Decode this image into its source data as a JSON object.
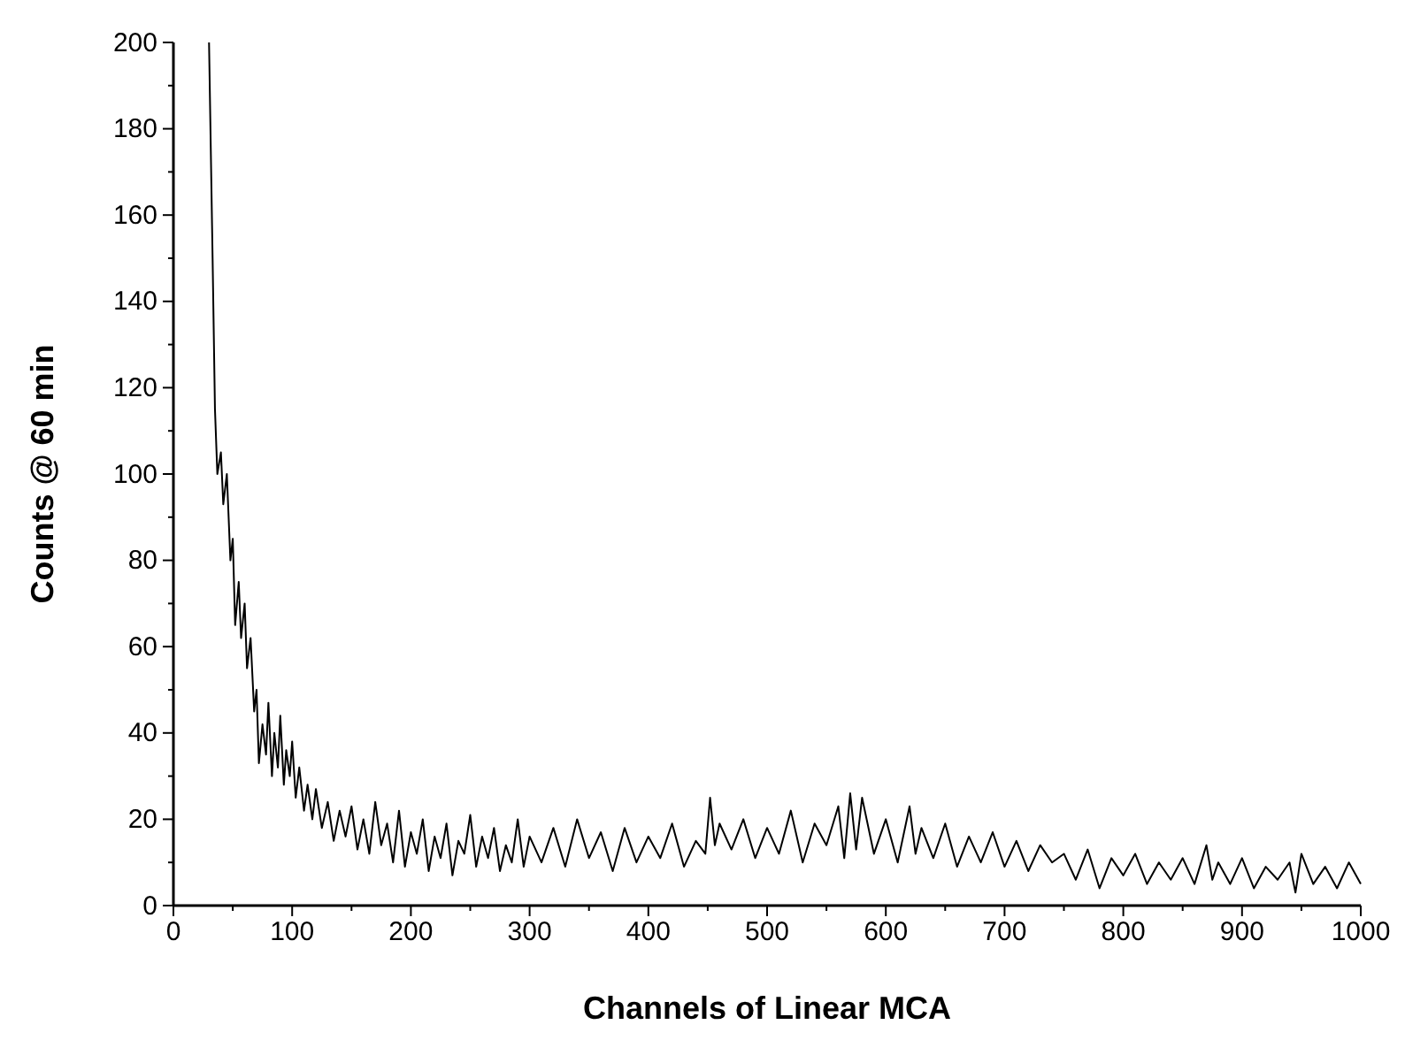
{
  "chart_data": {
    "type": "line",
    "xlabel": "Channels of Linear MCA",
    "ylabel": "Counts @ 60 min",
    "xlim": [
      0,
      1000
    ],
    "ylim": [
      0,
      200
    ],
    "xticks": [
      0,
      {
        "value": 50,
        "label": null
      },
      100,
      {
        "value": 150,
        "label": null
      },
      200,
      {
        "value": 250,
        "label": null
      },
      300,
      {
        "value": 350,
        "label": null
      },
      400,
      {
        "value": 450,
        "label": null
      },
      500,
      {
        "value": 550,
        "label": null
      },
      600,
      {
        "value": 650,
        "label": null
      },
      700,
      {
        "value": 750,
        "label": null
      },
      800,
      {
        "value": 850,
        "label": null
      },
      900,
      {
        "value": 950,
        "label": null
      },
      1000
    ],
    "yticks": [
      0,
      {
        "value": 10,
        "label": null
      },
      20,
      {
        "value": 30,
        "label": null
      },
      40,
      {
        "value": 50,
        "label": null
      },
      60,
      {
        "value": 70,
        "label": null
      },
      80,
      {
        "value": 90,
        "label": null
      },
      100,
      {
        "value": 110,
        "label": null
      },
      120,
      {
        "value": 130,
        "label": null
      },
      140,
      {
        "value": 150,
        "label": null
      },
      160,
      {
        "value": 170,
        "label": null
      },
      180,
      {
        "value": 190,
        "label": null
      },
      200
    ],
    "grid": false,
    "marker": "none",
    "line_style": "solid",
    "series": [
      {
        "color": "#000000",
        "x": [
          30,
          33,
          35,
          37,
          40,
          42,
          45,
          48,
          50,
          52,
          55,
          57,
          60,
          62,
          65,
          68,
          70,
          72,
          75,
          78,
          80,
          83,
          85,
          88,
          90,
          93,
          95,
          98,
          100,
          103,
          106,
          110,
          113,
          117,
          120,
          125,
          130,
          135,
          140,
          145,
          150,
          155,
          160,
          165,
          170,
          175,
          180,
          185,
          190,
          195,
          200,
          205,
          210,
          215,
          220,
          225,
          230,
          235,
          240,
          245,
          250,
          255,
          260,
          265,
          270,
          275,
          280,
          285,
          290,
          295,
          300,
          310,
          320,
          330,
          340,
          350,
          360,
          370,
          380,
          390,
          400,
          410,
          420,
          430,
          440,
          448,
          452,
          456,
          460,
          470,
          480,
          490,
          500,
          510,
          520,
          530,
          540,
          550,
          560,
          565,
          570,
          575,
          580,
          590,
          600,
          610,
          620,
          625,
          630,
          640,
          650,
          660,
          670,
          680,
          690,
          700,
          710,
          720,
          730,
          740,
          750,
          760,
          770,
          780,
          790,
          800,
          810,
          820,
          830,
          840,
          850,
          860,
          870,
          875,
          880,
          890,
          900,
          910,
          920,
          930,
          940,
          945,
          950,
          960,
          970,
          980,
          990,
          1000
        ],
        "values": [
          200,
          150,
          115,
          100,
          105,
          93,
          100,
          80,
          85,
          65,
          75,
          62,
          70,
          55,
          62,
          45,
          50,
          33,
          42,
          35,
          47,
          30,
          40,
          32,
          44,
          28,
          36,
          30,
          38,
          25,
          32,
          22,
          28,
          20,
          27,
          18,
          24,
          15,
          22,
          16,
          23,
          13,
          20,
          12,
          24,
          14,
          19,
          10,
          22,
          9,
          17,
          12,
          20,
          8,
          16,
          11,
          19,
          7,
          15,
          12,
          21,
          9,
          16,
          11,
          18,
          8,
          14,
          10,
          20,
          9,
          16,
          10,
          18,
          9,
          20,
          11,
          17,
          8,
          18,
          10,
          16,
          11,
          19,
          9,
          15,
          12,
          25,
          14,
          19,
          13,
          20,
          11,
          18,
          12,
          22,
          10,
          19,
          14,
          23,
          11,
          26,
          13,
          25,
          12,
          20,
          10,
          23,
          12,
          18,
          11,
          19,
          9,
          16,
          10,
          17,
          9,
          15,
          8,
          14,
          10,
          12,
          6,
          13,
          4,
          11,
          7,
          12,
          5,
          10,
          6,
          11,
          5,
          14,
          6,
          10,
          5,
          11,
          4,
          9,
          6,
          10,
          3,
          12,
          5,
          9,
          4,
          10,
          5
        ]
      }
    ]
  }
}
